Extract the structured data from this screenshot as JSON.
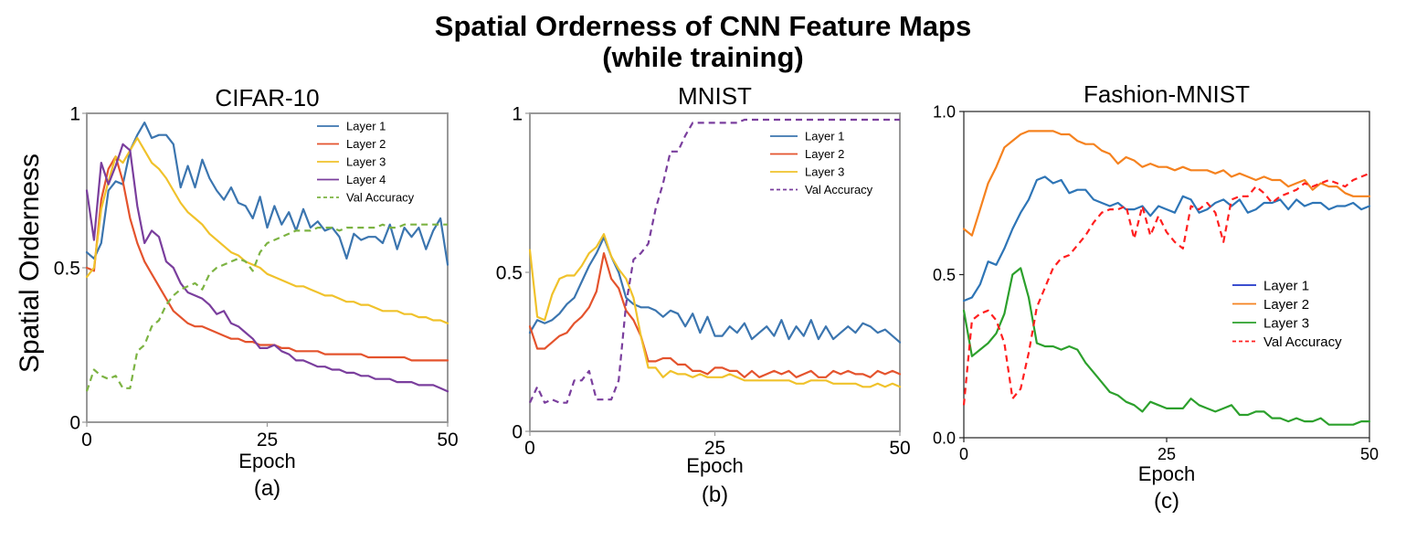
{
  "title_line1": "Spatial Orderness of CNN Feature Maps",
  "title_line2": "(while training)",
  "shared_ylabel": "Spatial Orderness",
  "chart_data": [
    {
      "type": "line",
      "panel": "(a)",
      "title": "CIFAR-10",
      "xlabel": "Epoch",
      "ylabel": "Spatial Orderness",
      "xlim": [
        0,
        50
      ],
      "ylim": [
        0,
        1
      ],
      "xticks": [
        "0",
        "25",
        "50"
      ],
      "xtick_values": [
        0,
        25,
        50
      ],
      "yticks": [
        "0",
        "0.5",
        "1"
      ],
      "ytick_values": [
        0,
        0.5,
        1
      ],
      "legend_position": "upper-right",
      "x": [
        0,
        1,
        2,
        3,
        4,
        5,
        6,
        7,
        8,
        9,
        10,
        11,
        12,
        13,
        14,
        15,
        16,
        17,
        18,
        19,
        20,
        21,
        22,
        23,
        24,
        25,
        26,
        27,
        28,
        29,
        30,
        31,
        32,
        33,
        34,
        35,
        36,
        37,
        38,
        39,
        40,
        41,
        42,
        43,
        44,
        45,
        46,
        47,
        48,
        49,
        50
      ],
      "series": [
        {
          "name": "Layer 1",
          "color": "#3b75af",
          "dash": "solid",
          "values": [
            0.55,
            0.53,
            0.58,
            0.75,
            0.78,
            0.77,
            0.88,
            0.93,
            0.97,
            0.92,
            0.93,
            0.93,
            0.9,
            0.76,
            0.83,
            0.76,
            0.85,
            0.79,
            0.75,
            0.72,
            0.76,
            0.71,
            0.7,
            0.66,
            0.73,
            0.63,
            0.7,
            0.64,
            0.68,
            0.62,
            0.69,
            0.63,
            0.65,
            0.62,
            0.63,
            0.6,
            0.53,
            0.61,
            0.59,
            0.6,
            0.6,
            0.58,
            0.64,
            0.56,
            0.63,
            0.6,
            0.63,
            0.56,
            0.62,
            0.66,
            0.51
          ]
        },
        {
          "name": "Layer 2",
          "color": "#e4532d",
          "dash": "solid",
          "values": [
            0.5,
            0.49,
            0.72,
            0.82,
            0.86,
            0.78,
            0.66,
            0.58,
            0.52,
            0.48,
            0.44,
            0.4,
            0.36,
            0.34,
            0.32,
            0.31,
            0.31,
            0.3,
            0.29,
            0.28,
            0.27,
            0.27,
            0.26,
            0.26,
            0.25,
            0.25,
            0.25,
            0.24,
            0.24,
            0.23,
            0.23,
            0.23,
            0.23,
            0.22,
            0.22,
            0.22,
            0.22,
            0.22,
            0.22,
            0.21,
            0.21,
            0.21,
            0.21,
            0.21,
            0.21,
            0.2,
            0.2,
            0.2,
            0.2,
            0.2,
            0.2
          ]
        },
        {
          "name": "Layer 3",
          "color": "#f0c22b",
          "dash": "solid",
          "values": [
            0.47,
            0.5,
            0.69,
            0.78,
            0.86,
            0.84,
            0.88,
            0.92,
            0.88,
            0.84,
            0.82,
            0.79,
            0.75,
            0.71,
            0.68,
            0.66,
            0.64,
            0.61,
            0.59,
            0.57,
            0.55,
            0.54,
            0.52,
            0.51,
            0.5,
            0.48,
            0.47,
            0.46,
            0.45,
            0.44,
            0.44,
            0.43,
            0.42,
            0.41,
            0.41,
            0.4,
            0.39,
            0.39,
            0.38,
            0.38,
            0.37,
            0.36,
            0.36,
            0.36,
            0.35,
            0.35,
            0.34,
            0.34,
            0.33,
            0.33,
            0.32
          ]
        },
        {
          "name": "Layer 4",
          "color": "#7a3e9d",
          "dash": "solid",
          "values": [
            0.75,
            0.59,
            0.84,
            0.77,
            0.83,
            0.9,
            0.88,
            0.7,
            0.58,
            0.62,
            0.6,
            0.52,
            0.5,
            0.45,
            0.42,
            0.41,
            0.4,
            0.38,
            0.35,
            0.36,
            0.32,
            0.31,
            0.29,
            0.27,
            0.24,
            0.24,
            0.25,
            0.23,
            0.22,
            0.2,
            0.2,
            0.19,
            0.18,
            0.18,
            0.17,
            0.17,
            0.16,
            0.16,
            0.15,
            0.15,
            0.14,
            0.14,
            0.14,
            0.13,
            0.13,
            0.13,
            0.12,
            0.12,
            0.12,
            0.11,
            0.1
          ]
        },
        {
          "name": "Val Accuracy",
          "color": "#7cb342",
          "dash": "dashed",
          "values": [
            0.1,
            0.17,
            0.15,
            0.14,
            0.15,
            0.11,
            0.11,
            0.23,
            0.25,
            0.31,
            0.33,
            0.38,
            0.41,
            0.43,
            0.44,
            0.45,
            0.43,
            0.48,
            0.5,
            0.51,
            0.52,
            0.53,
            0.52,
            0.49,
            0.55,
            0.58,
            0.59,
            0.6,
            0.61,
            0.62,
            0.62,
            0.62,
            0.63,
            0.63,
            0.63,
            0.62,
            0.63,
            0.63,
            0.63,
            0.63,
            0.63,
            0.64,
            0.63,
            0.63,
            0.64,
            0.64,
            0.64,
            0.64,
            0.64,
            0.64,
            0.64
          ]
        }
      ]
    },
    {
      "type": "line",
      "panel": "(b)",
      "title": "MNIST",
      "xlabel": "Epoch",
      "ylabel": "",
      "xlim": [
        0,
        50
      ],
      "ylim": [
        0,
        1
      ],
      "xticks": [
        "0",
        "25",
        "50"
      ],
      "xtick_values": [
        0,
        25,
        50
      ],
      "yticks": [
        "0",
        "0.5",
        "1"
      ],
      "ytick_values": [
        0,
        0.5,
        1
      ],
      "legend_position": "upper-right",
      "x": [
        0,
        1,
        2,
        3,
        4,
        5,
        6,
        7,
        8,
        9,
        10,
        11,
        12,
        13,
        14,
        15,
        16,
        17,
        18,
        19,
        20,
        21,
        22,
        23,
        24,
        25,
        26,
        27,
        28,
        29,
        30,
        31,
        32,
        33,
        34,
        35,
        36,
        37,
        38,
        39,
        40,
        41,
        42,
        43,
        44,
        45,
        46,
        47,
        48,
        49,
        50
      ],
      "series": [
        {
          "name": "Layer 1",
          "color": "#3b75af",
          "dash": "solid",
          "values": [
            0.31,
            0.35,
            0.34,
            0.35,
            0.37,
            0.4,
            0.42,
            0.47,
            0.52,
            0.56,
            0.61,
            0.55,
            0.5,
            0.42,
            0.4,
            0.39,
            0.39,
            0.38,
            0.36,
            0.38,
            0.37,
            0.33,
            0.37,
            0.31,
            0.36,
            0.3,
            0.3,
            0.33,
            0.31,
            0.34,
            0.29,
            0.31,
            0.33,
            0.3,
            0.35,
            0.29,
            0.33,
            0.3,
            0.35,
            0.29,
            0.33,
            0.29,
            0.31,
            0.33,
            0.31,
            0.34,
            0.33,
            0.31,
            0.32,
            0.3,
            0.28
          ]
        },
        {
          "name": "Layer 2",
          "color": "#e4532d",
          "dash": "solid",
          "values": [
            0.33,
            0.26,
            0.26,
            0.28,
            0.3,
            0.31,
            0.34,
            0.36,
            0.39,
            0.44,
            0.56,
            0.48,
            0.45,
            0.38,
            0.35,
            0.3,
            0.22,
            0.22,
            0.23,
            0.23,
            0.21,
            0.21,
            0.19,
            0.19,
            0.18,
            0.2,
            0.2,
            0.19,
            0.19,
            0.17,
            0.19,
            0.17,
            0.18,
            0.19,
            0.18,
            0.19,
            0.17,
            0.18,
            0.19,
            0.17,
            0.17,
            0.19,
            0.18,
            0.19,
            0.18,
            0.18,
            0.17,
            0.19,
            0.18,
            0.19,
            0.18
          ]
        },
        {
          "name": "Layer 3",
          "color": "#f0c22b",
          "dash": "solid",
          "values": [
            0.57,
            0.36,
            0.35,
            0.43,
            0.48,
            0.49,
            0.49,
            0.52,
            0.56,
            0.58,
            0.62,
            0.55,
            0.51,
            0.48,
            0.42,
            0.3,
            0.2,
            0.2,
            0.17,
            0.19,
            0.18,
            0.18,
            0.17,
            0.18,
            0.17,
            0.17,
            0.17,
            0.18,
            0.17,
            0.16,
            0.16,
            0.16,
            0.16,
            0.16,
            0.16,
            0.16,
            0.15,
            0.15,
            0.16,
            0.16,
            0.16,
            0.15,
            0.15,
            0.15,
            0.15,
            0.14,
            0.14,
            0.15,
            0.14,
            0.15,
            0.14
          ]
        },
        {
          "name": "Val Accuracy",
          "color": "#7a3e9d",
          "dash": "dashed",
          "values": [
            0.09,
            0.14,
            0.09,
            0.1,
            0.09,
            0.09,
            0.16,
            0.16,
            0.19,
            0.1,
            0.1,
            0.1,
            0.16,
            0.4,
            0.54,
            0.56,
            0.59,
            0.7,
            0.78,
            0.88,
            0.88,
            0.93,
            0.97,
            0.97,
            0.97,
            0.97,
            0.97,
            0.97,
            0.97,
            0.98,
            0.98,
            0.98,
            0.98,
            0.98,
            0.98,
            0.98,
            0.98,
            0.98,
            0.98,
            0.98,
            0.98,
            0.98,
            0.98,
            0.98,
            0.98,
            0.98,
            0.98,
            0.98,
            0.98,
            0.98,
            0.98
          ]
        }
      ]
    },
    {
      "type": "line",
      "panel": "(c)",
      "title": "Fashion-MNIST",
      "xlabel": "Epoch",
      "ylabel": "",
      "xlim": [
        0,
        50
      ],
      "ylim": [
        0,
        1
      ],
      "xticks": [
        "0",
        "25",
        "50"
      ],
      "xtick_values": [
        0,
        25,
        50
      ],
      "yticks": [
        "0.0",
        "0.5",
        "1.0"
      ],
      "ytick_values": [
        0,
        0.5,
        1
      ],
      "legend_position": "center-right",
      "x": [
        0,
        1,
        2,
        3,
        4,
        5,
        6,
        7,
        8,
        9,
        10,
        11,
        12,
        13,
        14,
        15,
        16,
        17,
        18,
        19,
        20,
        21,
        22,
        23,
        24,
        25,
        26,
        27,
        28,
        29,
        30,
        31,
        32,
        33,
        34,
        35,
        36,
        37,
        38,
        39,
        40,
        41,
        42,
        43,
        44,
        45,
        46,
        47,
        48,
        49,
        50
      ],
      "series": [
        {
          "name": "Layer 1",
          "color": "#2e75b6",
          "dash": "solid",
          "legend_color": "#1f35c8",
          "values": [
            0.42,
            0.43,
            0.47,
            0.54,
            0.53,
            0.58,
            0.64,
            0.69,
            0.73,
            0.79,
            0.8,
            0.78,
            0.79,
            0.75,
            0.76,
            0.76,
            0.73,
            0.72,
            0.71,
            0.72,
            0.7,
            0.7,
            0.71,
            0.68,
            0.71,
            0.7,
            0.69,
            0.74,
            0.73,
            0.69,
            0.7,
            0.72,
            0.73,
            0.71,
            0.73,
            0.69,
            0.7,
            0.72,
            0.72,
            0.73,
            0.7,
            0.73,
            0.71,
            0.72,
            0.72,
            0.7,
            0.71,
            0.71,
            0.72,
            0.7,
            0.71
          ]
        },
        {
          "name": "Layer 2",
          "color": "#f5821f",
          "dash": "solid",
          "values": [
            0.64,
            0.62,
            0.7,
            0.78,
            0.83,
            0.89,
            0.91,
            0.93,
            0.94,
            0.94,
            0.94,
            0.94,
            0.93,
            0.93,
            0.91,
            0.9,
            0.9,
            0.88,
            0.87,
            0.84,
            0.86,
            0.85,
            0.83,
            0.84,
            0.83,
            0.83,
            0.82,
            0.83,
            0.82,
            0.82,
            0.82,
            0.81,
            0.82,
            0.8,
            0.81,
            0.8,
            0.79,
            0.8,
            0.79,
            0.79,
            0.77,
            0.78,
            0.79,
            0.76,
            0.78,
            0.77,
            0.77,
            0.75,
            0.74,
            0.74,
            0.74
          ]
        },
        {
          "name": "Layer 3",
          "color": "#2ca02c",
          "dash": "solid",
          "values": [
            0.39,
            0.25,
            0.27,
            0.29,
            0.32,
            0.38,
            0.5,
            0.52,
            0.43,
            0.29,
            0.28,
            0.28,
            0.27,
            0.28,
            0.27,
            0.23,
            0.2,
            0.17,
            0.14,
            0.13,
            0.11,
            0.1,
            0.08,
            0.11,
            0.1,
            0.09,
            0.09,
            0.09,
            0.12,
            0.1,
            0.09,
            0.08,
            0.09,
            0.1,
            0.07,
            0.07,
            0.08,
            0.08,
            0.06,
            0.06,
            0.05,
            0.06,
            0.05,
            0.05,
            0.06,
            0.04,
            0.04,
            0.04,
            0.04,
            0.05,
            0.05
          ]
        },
        {
          "name": "Val Accuracy",
          "color": "#ff1f1f",
          "dash": "dashed",
          "values": [
            0.1,
            0.36,
            0.38,
            0.39,
            0.36,
            0.29,
            0.12,
            0.15,
            0.26,
            0.4,
            0.46,
            0.52,
            0.55,
            0.56,
            0.59,
            0.62,
            0.66,
            0.69,
            0.7,
            0.7,
            0.71,
            0.61,
            0.71,
            0.62,
            0.68,
            0.63,
            0.6,
            0.58,
            0.71,
            0.7,
            0.72,
            0.69,
            0.6,
            0.73,
            0.74,
            0.74,
            0.77,
            0.75,
            0.72,
            0.74,
            0.75,
            0.76,
            0.78,
            0.77,
            0.78,
            0.79,
            0.78,
            0.77,
            0.79,
            0.8,
            0.81
          ]
        }
      ]
    }
  ]
}
